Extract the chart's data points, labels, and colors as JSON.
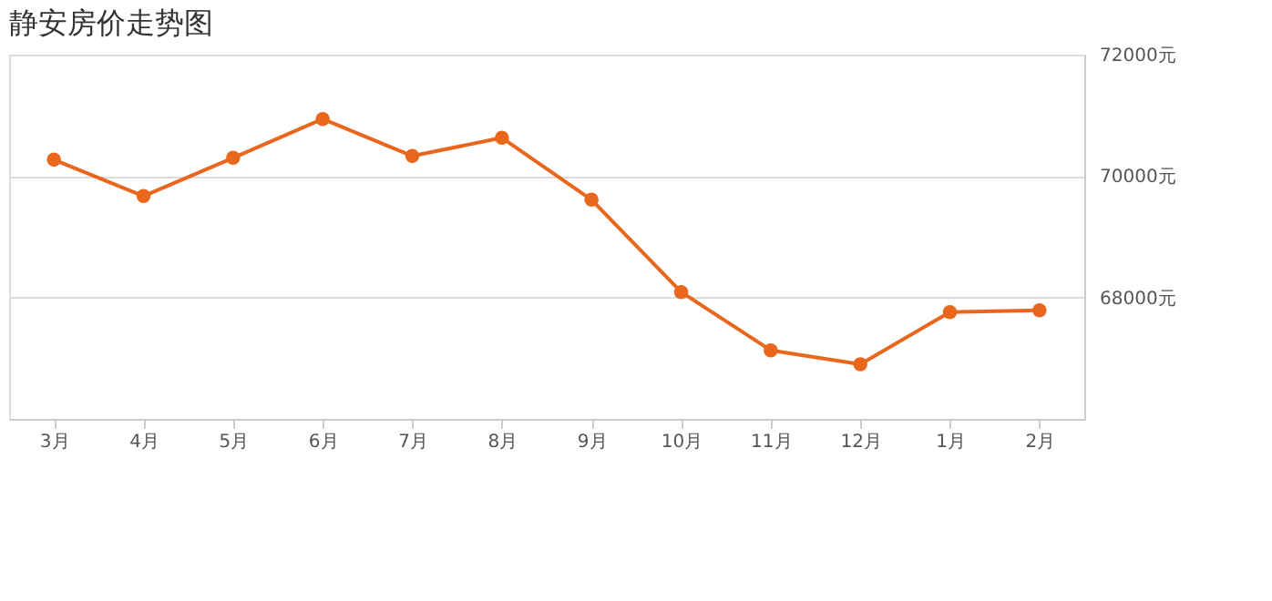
{
  "chart_data": {
    "type": "line",
    "title": "静安房价走势图",
    "categories": [
      "3月",
      "4月",
      "5月",
      "6月",
      "7月",
      "8月",
      "9月",
      "10月",
      "11月",
      "12月",
      "1月",
      "2月"
    ],
    "series": [
      {
        "color": "#e8671c",
        "values": [
          70270,
          69670,
          70300,
          70940,
          70330,
          70630,
          69610,
          68090,
          67130,
          66900,
          67760,
          67790
        ]
      }
    ],
    "ylim": [
      66000,
      72000
    ],
    "yticks": [
      {
        "value": 68000,
        "label": "68000元"
      },
      {
        "value": 70000,
        "label": "70000元"
      },
      {
        "value": 72000,
        "label": "72000元"
      }
    ],
    "grid": "y",
    "marker": "circle",
    "line_style": "solid"
  }
}
